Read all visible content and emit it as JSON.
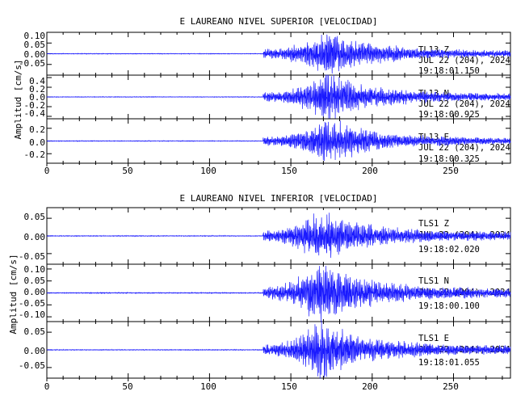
{
  "colors": {
    "trace": "#1a1aff",
    "axis": "#000000",
    "background": "#ffffff"
  },
  "chart_data": [
    {
      "type": "line",
      "title": "E LAUREANO NIVEL SUPERIOR [VELOCIDAD]",
      "ylabel": "Amplitud [cm/s]",
      "xlim": [
        0,
        285
      ],
      "xticks": [
        "0",
        "50",
        "100",
        "150",
        "200",
        "250"
      ],
      "series": [
        {
          "annotation": [
            "TL13   Z",
            "JUL 22 (204), 2024",
            "19:18:01.150"
          ],
          "ylim": [
            -0.1,
            0.1
          ],
          "yticks": [
            "0.10",
            "0.05",
            "0.00",
            "-0.05"
          ],
          "yvalues": [
            0.1,
            0.05,
            0.0,
            -0.05
          ],
          "envelope": {
            "onset": 133,
            "peak": 173,
            "peak_amp": 0.09,
            "noise": 0.0015,
            "seed": 3
          }
        },
        {
          "annotation": [
            "TL13   N",
            "JUL 22 (204), 2024",
            "19:18:00.925"
          ],
          "ylim": [
            -0.45,
            0.45
          ],
          "yticks": [
            "0.4",
            "0.2",
            "0.0",
            "-0.2",
            "-0.4"
          ],
          "yvalues": [
            0.4,
            0.2,
            0.0,
            -0.2,
            -0.4
          ],
          "envelope": {
            "onset": 133,
            "peak": 173,
            "peak_amp": 0.42,
            "noise": 0.006,
            "seed": 11
          }
        },
        {
          "annotation": [
            "TL13   E",
            "JUL 22 (204), 2024",
            "19:18:00.325"
          ],
          "ylim": [
            -0.35,
            0.35
          ],
          "yticks": [
            "0.2",
            "0.0",
            "-0.2"
          ],
          "yvalues": [
            0.2,
            0.0,
            -0.2
          ],
          "envelope": {
            "onset": 133,
            "peak": 173,
            "peak_amp": 0.3,
            "noise": 0.005,
            "seed": 23
          }
        }
      ]
    },
    {
      "type": "line",
      "title": "E LAUREANO NIVEL INFERIOR [VELOCIDAD]",
      "ylabel": "Amplitud [cm/s]",
      "xlim": [
        0,
        285
      ],
      "xticks": [
        "0",
        "50",
        "100",
        "150",
        "200",
        "250"
      ],
      "series": [
        {
          "annotation": [
            "TLS1   Z",
            "JUL 22 (204), 2024",
            "19:18:02.020"
          ],
          "ylim": [
            -0.08,
            0.08
          ],
          "yticks": [
            "0.05",
            "0.00",
            "-0.05"
          ],
          "yvalues": [
            0.05,
            0.0,
            -0.05
          ],
          "envelope": {
            "onset": 133,
            "peak": 168,
            "peak_amp": 0.065,
            "noise": 0.001,
            "seed": 37
          }
        },
        {
          "annotation": [
            "TLS1   N",
            "JUL 22 (204), 2024",
            "19:18:00.100"
          ],
          "ylim": [
            -0.12,
            0.12
          ],
          "yticks": [
            "0.10",
            "0.05",
            "0.00",
            "-0.05",
            "-0.10"
          ],
          "yvalues": [
            0.1,
            0.05,
            0.0,
            -0.05,
            -0.1
          ],
          "envelope": {
            "onset": 133,
            "peak": 168,
            "peak_amp": 0.11,
            "noise": 0.0018,
            "seed": 53
          }
        },
        {
          "annotation": [
            "TLS1   E",
            "JUL 22 (204), 2024",
            "19:18:01.055"
          ],
          "ylim": [
            -0.08,
            0.08
          ],
          "yticks": [
            "0.05",
            "0.00",
            "-0.05"
          ],
          "yvalues": [
            0.05,
            0.0,
            -0.05
          ],
          "envelope": {
            "onset": 133,
            "peak": 168,
            "peak_amp": 0.07,
            "noise": 0.001,
            "seed": 71
          }
        }
      ]
    }
  ]
}
